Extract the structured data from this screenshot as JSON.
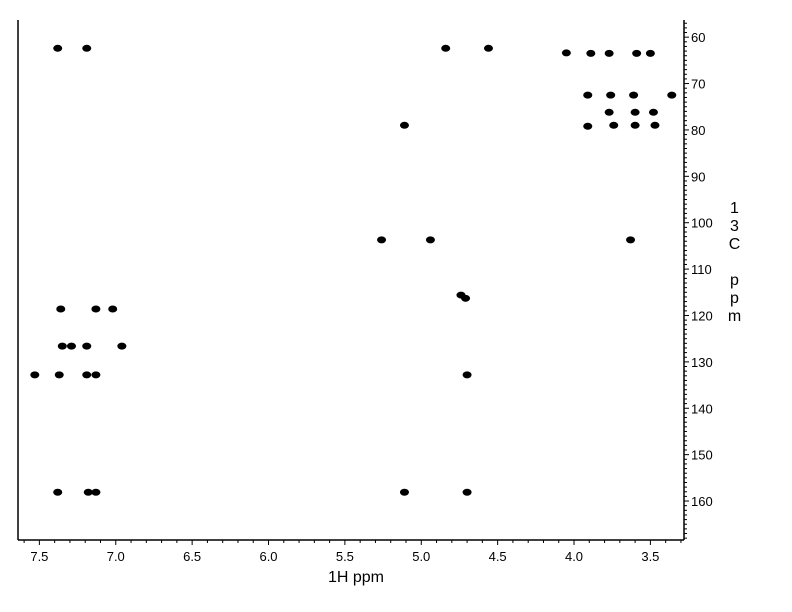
{
  "chart_data": {
    "type": "scatter",
    "title": "",
    "xlabel": "1H ppm",
    "ylabel": "13C ppm",
    "xlim": [
      7.64,
      3.28
    ],
    "ylim": [
      56.3,
      168.4
    ],
    "x_reversed": true,
    "y_reversed": true,
    "grid": false,
    "x_ticks": [
      "7.5",
      "7.0",
      "6.5",
      "6.0",
      "5.5",
      "5.0",
      "4.5",
      "4.0",
      "3.5"
    ],
    "y_ticks": [
      "60",
      "70",
      "80",
      "90",
      "100",
      "110",
      "120",
      "130",
      "140",
      "150",
      "160"
    ],
    "peak_color": "#000000",
    "peaks": [
      {
        "x": 7.38,
        "y": 62.4
      },
      {
        "x": 7.19,
        "y": 62.4
      },
      {
        "x": 4.84,
        "y": 62.4
      },
      {
        "x": 4.56,
        "y": 62.4
      },
      {
        "x": 4.05,
        "y": 63.4
      },
      {
        "x": 3.89,
        "y": 63.5
      },
      {
        "x": 3.77,
        "y": 63.5
      },
      {
        "x": 3.59,
        "y": 63.5
      },
      {
        "x": 3.5,
        "y": 63.5
      },
      {
        "x": 3.91,
        "y": 72.5
      },
      {
        "x": 3.76,
        "y": 72.5
      },
      {
        "x": 3.61,
        "y": 72.5
      },
      {
        "x": 3.36,
        "y": 72.5
      },
      {
        "x": 3.77,
        "y": 76.2
      },
      {
        "x": 3.6,
        "y": 76.2
      },
      {
        "x": 3.48,
        "y": 76.2
      },
      {
        "x": 5.11,
        "y": 79.0
      },
      {
        "x": 3.91,
        "y": 79.2
      },
      {
        "x": 3.74,
        "y": 79.0
      },
      {
        "x": 3.6,
        "y": 79.0
      },
      {
        "x": 3.47,
        "y": 79.0
      },
      {
        "x": 5.26,
        "y": 103.7
      },
      {
        "x": 4.94,
        "y": 103.7
      },
      {
        "x": 3.63,
        "y": 103.7
      },
      {
        "x": 4.74,
        "y": 115.6
      },
      {
        "x": 4.71,
        "y": 116.3
      },
      {
        "x": 7.36,
        "y": 118.6
      },
      {
        "x": 7.13,
        "y": 118.6
      },
      {
        "x": 7.02,
        "y": 118.6
      },
      {
        "x": 7.35,
        "y": 126.6
      },
      {
        "x": 7.29,
        "y": 126.6
      },
      {
        "x": 7.19,
        "y": 126.6
      },
      {
        "x": 6.96,
        "y": 126.6
      },
      {
        "x": 7.53,
        "y": 132.8
      },
      {
        "x": 7.37,
        "y": 132.8
      },
      {
        "x": 7.19,
        "y": 132.8
      },
      {
        "x": 7.13,
        "y": 132.8
      },
      {
        "x": 4.7,
        "y": 132.8
      },
      {
        "x": 7.38,
        "y": 158.1
      },
      {
        "x": 7.18,
        "y": 158.1
      },
      {
        "x": 7.13,
        "y": 158.1
      },
      {
        "x": 5.11,
        "y": 158.1
      },
      {
        "x": 4.7,
        "y": 158.1
      }
    ]
  }
}
